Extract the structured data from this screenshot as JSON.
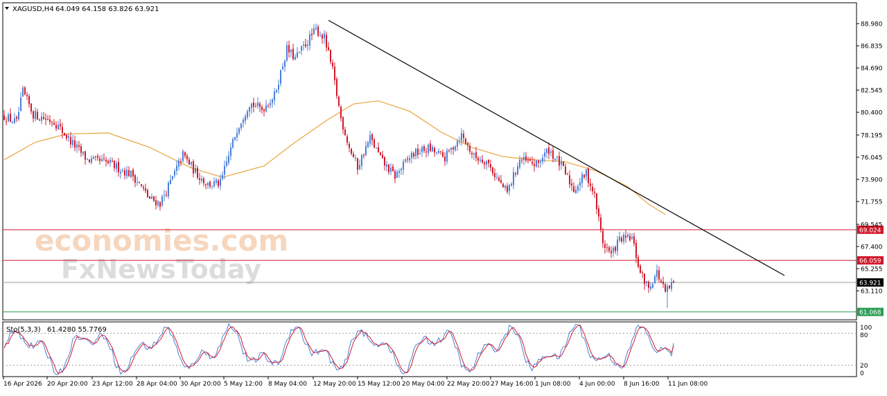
{
  "header": {
    "symbol": "XAGUSD,H4",
    "ohlc": "64.049 64.158 63.826 63.921"
  },
  "indicator": {
    "label": "Sto(5,3,3)",
    "values": "61.4280 55.7769",
    "ticks": [
      "100",
      "80",
      "20",
      "0"
    ]
  },
  "watermark": {
    "line1": "economies.com",
    "line2": "FxNewsToday"
  },
  "colors": {
    "bull": "#4a7fd6",
    "bear": "#d1182b",
    "ma": "#e8a33c",
    "level": "#d1182b",
    "support": "#2e9e57",
    "trend": "#000000",
    "stoch_main": "#4a7fd6",
    "stoch_signal": "#d1182b"
  },
  "chart_data": {
    "type": "candlestick",
    "ylim": [
      60.3,
      91.0
    ],
    "price_ticks": [
      "88.980",
      "86.835",
      "84.690",
      "82.545",
      "80.400",
      "78.195",
      "76.045",
      "73.900",
      "71.755",
      "69.545",
      "67.400",
      "65.255",
      "63.110"
    ],
    "time_labels": [
      "16 Apr 2026",
      "20 Apr 20:00",
      "23 Apr 12:00",
      "28 Apr 04:00",
      "30 Apr 20:00",
      "5 May 12:00",
      "8 May 04:00",
      "12 May 20:00",
      "15 May 12:00",
      "20 May 04:00",
      "22 May 20:00",
      "27 May 16:00",
      "1 Jun 08:00",
      "4 Jun 00:00",
      "8 Jun 16:00",
      "11 Jun 08:00"
    ],
    "levels": [
      {
        "price": 69.024,
        "label": "69.024",
        "kind": "resistance"
      },
      {
        "price": 66.059,
        "label": "66.059",
        "kind": "resistance"
      },
      {
        "price": 63.921,
        "label": "63.921",
        "kind": "current"
      },
      {
        "price": 61.068,
        "label": "61.068",
        "kind": "support"
      }
    ],
    "trendline": {
      "from_price": 89.3,
      "to_price": 64.6
    },
    "close_path": [
      {
        "i": 0,
        "p": 80.0
      },
      {
        "i": 6,
        "p": 79.4
      },
      {
        "i": 9,
        "p": 82.4
      },
      {
        "i": 14,
        "p": 80.2
      },
      {
        "i": 24,
        "p": 79.5
      },
      {
        "i": 32,
        "p": 77.6
      },
      {
        "i": 40,
        "p": 75.8
      },
      {
        "i": 50,
        "p": 75.5
      },
      {
        "i": 62,
        "p": 74.3
      },
      {
        "i": 70,
        "p": 72.0
      },
      {
        "i": 75,
        "p": 71.6
      },
      {
        "i": 80,
        "p": 73.6
      },
      {
        "i": 86,
        "p": 76.3
      },
      {
        "i": 92,
        "p": 74.6
      },
      {
        "i": 98,
        "p": 73.4
      },
      {
        "i": 104,
        "p": 73.5
      },
      {
        "i": 112,
        "p": 78.8
      },
      {
        "i": 118,
        "p": 81.3
      },
      {
        "i": 124,
        "p": 80.7
      },
      {
        "i": 130,
        "p": 82.0
      },
      {
        "i": 136,
        "p": 86.5
      },
      {
        "i": 140,
        "p": 85.6
      },
      {
        "i": 146,
        "p": 87.3
      },
      {
        "i": 150,
        "p": 88.4
      },
      {
        "i": 154,
        "p": 87.6
      },
      {
        "i": 158,
        "p": 84.4
      },
      {
        "i": 162,
        "p": 79.8
      },
      {
        "i": 166,
        "p": 77.0
      },
      {
        "i": 170,
        "p": 75.1
      },
      {
        "i": 176,
        "p": 77.9
      },
      {
        "i": 182,
        "p": 75.6
      },
      {
        "i": 188,
        "p": 74.2
      },
      {
        "i": 196,
        "p": 76.3
      },
      {
        "i": 204,
        "p": 76.9
      },
      {
        "i": 212,
        "p": 76.0
      },
      {
        "i": 220,
        "p": 78.2
      },
      {
        "i": 226,
        "p": 76.1
      },
      {
        "i": 232,
        "p": 75.7
      },
      {
        "i": 238,
        "p": 73.7
      },
      {
        "i": 242,
        "p": 72.6
      },
      {
        "i": 248,
        "p": 75.8
      },
      {
        "i": 256,
        "p": 75.3
      },
      {
        "i": 262,
        "p": 76.8
      },
      {
        "i": 268,
        "p": 75.2
      },
      {
        "i": 274,
        "p": 72.9
      },
      {
        "i": 280,
        "p": 74.5
      },
      {
        "i": 284,
        "p": 72.3
      },
      {
        "i": 288,
        "p": 67.8
      },
      {
        "i": 292,
        "p": 66.6
      },
      {
        "i": 296,
        "p": 68.1
      },
      {
        "i": 302,
        "p": 68.2
      },
      {
        "i": 306,
        "p": 64.8
      },
      {
        "i": 310,
        "p": 63.4
      },
      {
        "i": 314,
        "p": 64.9
      },
      {
        "i": 318,
        "p": 62.9
      },
      {
        "i": 322,
        "p": 63.9
      }
    ],
    "moving_average": [
      {
        "i": 0,
        "p": 75.8
      },
      {
        "i": 15,
        "p": 77.5
      },
      {
        "i": 30,
        "p": 78.3
      },
      {
        "i": 50,
        "p": 78.4
      },
      {
        "i": 70,
        "p": 77.0
      },
      {
        "i": 90,
        "p": 75.0
      },
      {
        "i": 105,
        "p": 74.1
      },
      {
        "i": 125,
        "p": 75.2
      },
      {
        "i": 140,
        "p": 77.5
      },
      {
        "i": 155,
        "p": 79.6
      },
      {
        "i": 168,
        "p": 81.2
      },
      {
        "i": 180,
        "p": 81.5
      },
      {
        "i": 195,
        "p": 80.5
      },
      {
        "i": 210,
        "p": 78.5
      },
      {
        "i": 225,
        "p": 77.0
      },
      {
        "i": 240,
        "p": 76.1
      },
      {
        "i": 255,
        "p": 75.8
      },
      {
        "i": 270,
        "p": 75.6
      },
      {
        "i": 285,
        "p": 74.7
      },
      {
        "i": 300,
        "p": 73.2
      },
      {
        "i": 310,
        "p": 71.5
      },
      {
        "i": 318,
        "p": 70.5
      }
    ],
    "stochastic": {
      "label": "Sto(5,3,3)",
      "main": 61.428,
      "signal": 55.7769,
      "levels": [
        80,
        20
      ],
      "ylim": [
        0,
        100
      ]
    }
  }
}
